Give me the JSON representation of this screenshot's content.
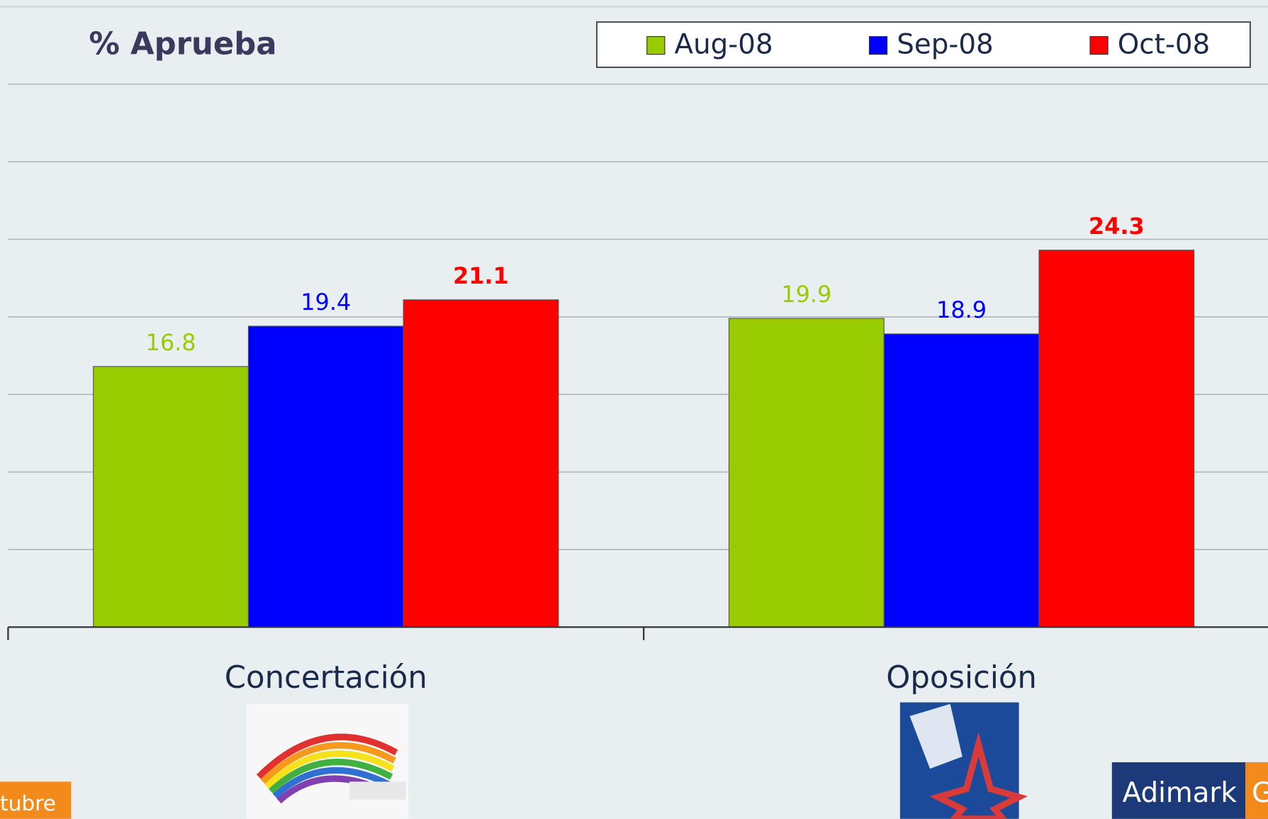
{
  "chart_data": {
    "type": "bar",
    "title": "% Aprueba",
    "categories": [
      "Concertación",
      "Oposición"
    ],
    "series": [
      {
        "name": "Aug-08",
        "color": "#99cc00",
        "values": [
          16.8,
          19.9
        ]
      },
      {
        "name": "Sep-08",
        "color": "#0000ff",
        "values": [
          19.4,
          18.9
        ]
      },
      {
        "name": "Oct-08",
        "color": "#ff0000",
        "values": [
          21.1,
          24.3
        ]
      }
    ],
    "ylim": [
      0,
      40
    ],
    "yticks": [
      0,
      5,
      10,
      15,
      20,
      25,
      30,
      35
    ],
    "grid": true,
    "legend": "top-right"
  },
  "footer": {
    "tab": "tubre",
    "logo": "Adimark",
    "logo_tail": "G"
  }
}
